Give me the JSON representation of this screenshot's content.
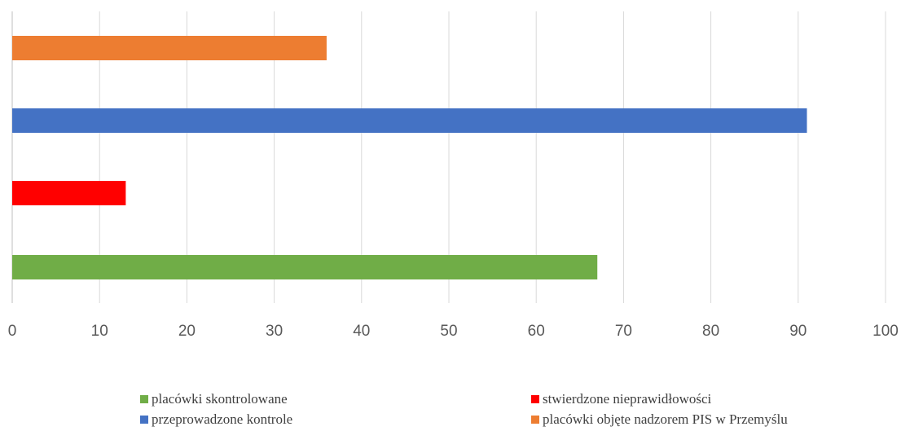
{
  "chart_data": {
    "type": "bar",
    "orientation": "horizontal",
    "title": "",
    "xlabel": "",
    "ylabel": "",
    "xlim": [
      0,
      100
    ],
    "xticks": [
      0,
      10,
      20,
      30,
      40,
      50,
      60,
      70,
      80,
      90,
      100
    ],
    "grid": true,
    "legend_position": "bottom",
    "series": [
      {
        "name": "placówki skontrolowane",
        "value": 67,
        "color": "#70ad47"
      },
      {
        "name": "stwierdzone nieprawidłowości",
        "value": 13,
        "color": "#ff0000"
      },
      {
        "name": "przeprowadzone kontrole",
        "value": 91,
        "color": "#4472c4"
      },
      {
        "name": "placówki objęte nadzorem PIS w Przemyślu",
        "value": 36,
        "color": "#ed7d31"
      }
    ]
  }
}
